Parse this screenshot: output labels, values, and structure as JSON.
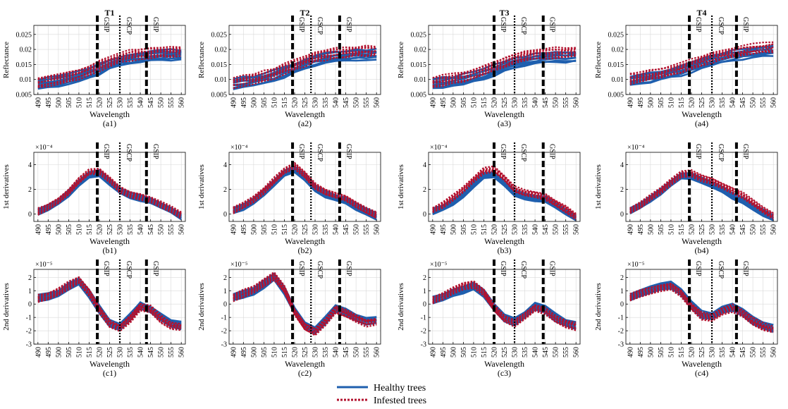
{
  "colors": {
    "healthy": "#1f5fae",
    "infested": "#b3122f",
    "axis": "#000000",
    "grid": "#d9d9d9"
  },
  "chart_data": {
    "type": "line",
    "x": [
      490,
      495,
      500,
      505,
      510,
      515,
      520,
      525,
      530,
      535,
      540,
      545,
      550,
      555,
      560
    ],
    "xticks": [
      "490",
      "495",
      "500",
      "505",
      "510",
      "515",
      "520",
      "525",
      "530",
      "535",
      "540",
      "545",
      "550",
      "555",
      "560"
    ],
    "xlabel": "Wavelength",
    "legend": [
      {
        "name": "Healthy trees",
        "style": "solid",
        "color": "#1f5fae"
      },
      {
        "name": "Infested trees",
        "style": "dotted",
        "color": "#b3122f"
      }
    ],
    "rows": [
      {
        "ylabel": "Reflectance",
        "ylim": [
          0.005,
          0.028
        ],
        "yticks": [
          0.005,
          0.01,
          0.015,
          0.02,
          0.025
        ],
        "yticklabels": [
          "0.005",
          "0.01",
          "0.015",
          "0.02",
          "0.025"
        ],
        "exponent": ""
      },
      {
        "ylabel": "1st derivatives",
        "ylim": [
          -0.6,
          5.0
        ],
        "yticks": [
          0,
          2,
          4
        ],
        "yticklabels": [
          "0",
          "2",
          "4"
        ],
        "exponent": "×10⁻⁴"
      },
      {
        "ylabel": "2nd derivatives",
        "ylim": [
          -3,
          2.6
        ],
        "yticks": [
          -3,
          -2,
          -1,
          0,
          1,
          2
        ],
        "yticklabels": [
          "-3",
          "-2",
          "-1",
          "0",
          "1",
          "2"
        ],
        "exponent": "×10⁻⁵"
      }
    ],
    "columns": [
      {
        "title": "T1",
        "markers": [
          {
            "x": 519,
            "label": "GSIP",
            "style": "dashed"
          },
          {
            "x": 530,
            "label": "GSCP",
            "style": "dotted"
          },
          {
            "x": 543,
            "label": "GSIP",
            "style": "dashed"
          }
        ],
        "panels": [
          "(a1)",
          "(b1)",
          "(c1)"
        ],
        "reflectance": {
          "healthy": [
            0.0085,
            0.009,
            0.0095,
            0.0102,
            0.011,
            0.0122,
            0.0135,
            0.015,
            0.0162,
            0.017,
            0.0175,
            0.0178,
            0.018,
            0.0182,
            0.0183
          ],
          "infested": [
            0.009,
            0.0096,
            0.0102,
            0.011,
            0.0119,
            0.0131,
            0.0145,
            0.016,
            0.0172,
            0.018,
            0.0186,
            0.019,
            0.0192,
            0.0194,
            0.0195
          ]
        },
        "first_derivative": {
          "healthy": [
            0.2,
            0.5,
            1.0,
            1.7,
            2.5,
            3.2,
            3.3,
            2.6,
            1.9,
            1.5,
            1.3,
            1.1,
            0.7,
            0.3,
            -0.2
          ],
          "infested": [
            0.2,
            0.6,
            1.1,
            1.8,
            2.7,
            3.4,
            3.5,
            2.8,
            2.0,
            1.6,
            1.4,
            1.2,
            0.8,
            0.4,
            -0.1
          ]
        },
        "second_derivative": {
          "healthy": [
            0.4,
            0.6,
            0.8,
            1.3,
            1.7,
            0.8,
            -0.4,
            -1.4,
            -1.7,
            -1.0,
            -0.1,
            -0.4,
            -1.0,
            -1.5,
            -1.6
          ],
          "infested": [
            0.4,
            0.6,
            0.9,
            1.4,
            1.8,
            0.9,
            -0.4,
            -1.5,
            -1.8,
            -1.1,
            -0.2,
            -0.4,
            -1.1,
            -1.6,
            -1.7
          ]
        }
      },
      {
        "title": "T2",
        "markers": [
          {
            "x": 519,
            "label": "GSIP",
            "style": "dashed"
          },
          {
            "x": 528,
            "label": "GSCP",
            "style": "dotted"
          },
          {
            "x": 542,
            "label": "GSIP",
            "style": "dashed"
          }
        ],
        "panels": [
          "(a2)",
          "(b2)",
          "(c2)"
        ],
        "reflectance": {
          "healthy": [
            0.0085,
            0.009,
            0.0096,
            0.0104,
            0.0113,
            0.0125,
            0.0138,
            0.0152,
            0.0163,
            0.0171,
            0.0176,
            0.0179,
            0.0181,
            0.0182,
            0.0183
          ],
          "infested": [
            0.009,
            0.0096,
            0.0103,
            0.0111,
            0.0121,
            0.0134,
            0.0148,
            0.0162,
            0.0174,
            0.0182,
            0.0187,
            0.0191,
            0.0193,
            0.0194,
            0.0195
          ]
        },
        "first_derivative": {
          "healthy": [
            0.3,
            0.6,
            1.1,
            1.7,
            2.5,
            3.3,
            3.6,
            3.0,
            2.1,
            1.6,
            1.3,
            1.1,
            0.6,
            0.2,
            -0.2
          ],
          "infested": [
            0.3,
            0.7,
            1.2,
            1.9,
            2.7,
            3.5,
            3.9,
            3.2,
            2.3,
            1.8,
            1.5,
            1.3,
            0.8,
            0.3,
            -0.1
          ]
        },
        "second_derivative": {
          "healthy": [
            0.5,
            0.7,
            1.0,
            1.5,
            2.0,
            1.0,
            -0.5,
            -1.6,
            -2.0,
            -1.2,
            -0.3,
            -0.6,
            -1.0,
            -1.3,
            -1.2
          ],
          "infested": [
            0.5,
            0.8,
            1.1,
            1.6,
            2.1,
            1.1,
            -0.6,
            -1.7,
            -2.1,
            -1.3,
            -0.4,
            -0.7,
            -1.1,
            -1.4,
            -1.3
          ]
        }
      },
      {
        "title": "T3",
        "markers": [
          {
            "x": 520,
            "label": "GSIP",
            "style": "dashed"
          },
          {
            "x": 530,
            "label": "GSCP",
            "style": "dotted"
          },
          {
            "x": 544,
            "label": "GSIP",
            "style": "dashed"
          }
        ],
        "panels": [
          "(a3)",
          "(b3)",
          "(c3)"
        ],
        "reflectance": {
          "healthy": [
            0.0085,
            0.0089,
            0.0094,
            0.01,
            0.0108,
            0.0118,
            0.013,
            0.0143,
            0.0154,
            0.0162,
            0.0168,
            0.0171,
            0.0174,
            0.0175,
            0.0176
          ],
          "infested": [
            0.0092,
            0.0097,
            0.0103,
            0.011,
            0.0119,
            0.013,
            0.0143,
            0.0157,
            0.0169,
            0.0178,
            0.0184,
            0.0188,
            0.019,
            0.0192,
            0.0193
          ]
        },
        "first_derivative": {
          "healthy": [
            0.2,
            0.5,
            1.0,
            1.6,
            2.4,
            3.1,
            3.2,
            2.5,
            1.7,
            1.4,
            1.3,
            1.2,
            0.7,
            0.2,
            -0.3
          ],
          "infested": [
            0.3,
            0.7,
            1.3,
            2.0,
            2.8,
            3.5,
            3.6,
            2.9,
            2.0,
            1.7,
            1.6,
            1.4,
            0.9,
            0.4,
            -0.2
          ]
        },
        "second_derivative": {
          "healthy": [
            0.3,
            0.5,
            0.8,
            1.1,
            1.3,
            0.8,
            -0.2,
            -1.0,
            -1.3,
            -0.8,
            -0.2,
            -0.4,
            -1.0,
            -1.4,
            -1.6
          ],
          "infested": [
            0.3,
            0.6,
            1.0,
            1.4,
            1.5,
            0.9,
            -0.3,
            -1.1,
            -1.4,
            -0.9,
            -0.3,
            -0.5,
            -1.1,
            -1.5,
            -1.7
          ]
        }
      },
      {
        "title": "T4",
        "markers": [
          {
            "x": 519,
            "label": "GSIP",
            "style": "dashed"
          },
          {
            "x": 530,
            "label": "GSCP",
            "style": "dotted"
          },
          {
            "x": 542,
            "label": "GSIP",
            "style": "dashed"
          }
        ],
        "panels": [
          "(a4)",
          "(b4)",
          "(c4)"
        ],
        "reflectance": {
          "healthy": [
            0.0095,
            0.01,
            0.0106,
            0.0113,
            0.0121,
            0.013,
            0.0141,
            0.0152,
            0.0163,
            0.0172,
            0.0179,
            0.0185,
            0.019,
            0.0194,
            0.0197
          ],
          "infested": [
            0.0102,
            0.0108,
            0.0114,
            0.0121,
            0.0129,
            0.0139,
            0.015,
            0.0162,
            0.0173,
            0.0182,
            0.0189,
            0.0195,
            0.02,
            0.0204,
            0.0207
          ]
        },
        "first_derivative": {
          "healthy": [
            0.3,
            0.7,
            1.2,
            1.8,
            2.5,
            3.1,
            3.1,
            2.7,
            2.4,
            2.0,
            1.5,
            1.1,
            0.6,
            0.1,
            -0.3
          ],
          "infested": [
            0.3,
            0.7,
            1.3,
            1.9,
            2.6,
            3.2,
            3.3,
            2.9,
            2.7,
            2.3,
            1.9,
            1.5,
            0.9,
            0.3,
            -0.2
          ]
        },
        "second_derivative": {
          "healthy": [
            0.5,
            0.8,
            1.1,
            1.3,
            1.4,
            0.9,
            -0.1,
            -0.8,
            -0.9,
            -0.4,
            -0.2,
            -0.6,
            -1.2,
            -1.6,
            -1.8
          ],
          "infested": [
            0.5,
            0.8,
            1.0,
            1.2,
            1.3,
            0.8,
            -0.2,
            -0.9,
            -1.0,
            -0.5,
            -0.3,
            -0.7,
            -1.3,
            -1.7,
            -1.9
          ]
        }
      }
    ]
  }
}
